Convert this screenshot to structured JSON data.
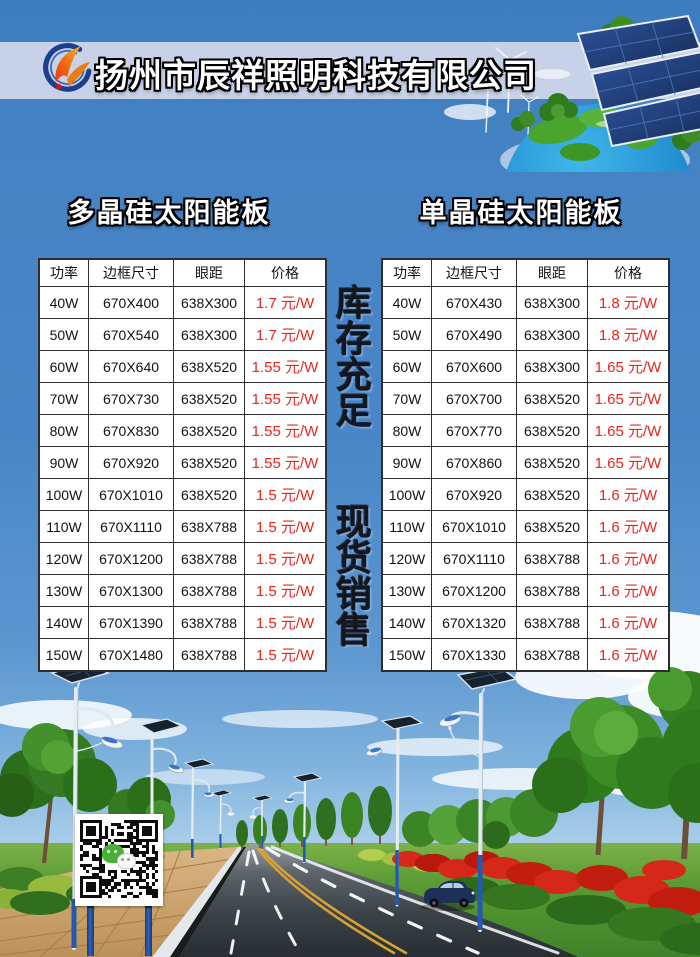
{
  "header": {
    "company_name": "扬州市辰祥照明科技有限公司"
  },
  "promo": {
    "line1": "库存充足",
    "line2": "现货销售"
  },
  "tables": [
    {
      "title": "多晶硅太阳能板",
      "columns": [
        "功率",
        "边框尺寸",
        "眼距",
        "价格"
      ],
      "rows": [
        [
          "40W",
          "670X400",
          "638X300",
          "1.7 元/W"
        ],
        [
          "50W",
          "670X540",
          "638X300",
          "1.7 元/W"
        ],
        [
          "60W",
          "670X640",
          "638X520",
          "1.55 元/W"
        ],
        [
          "70W",
          "670X730",
          "638X520",
          "1.55 元/W"
        ],
        [
          "80W",
          "670X830",
          "638X520",
          "1.55 元/W"
        ],
        [
          "90W",
          "670X920",
          "638X520",
          "1.55 元/W"
        ],
        [
          "100W",
          "670X1010",
          "638X520",
          "1.5 元/W"
        ],
        [
          "110W",
          "670X1110",
          "638X788",
          "1.5 元/W"
        ],
        [
          "120W",
          "670X1200",
          "638X788",
          "1.5 元/W"
        ],
        [
          "130W",
          "670X1300",
          "638X788",
          "1.5 元/W"
        ],
        [
          "140W",
          "670X1390",
          "638X788",
          "1.5 元/W"
        ],
        [
          "150W",
          "670X1480",
          "638X788",
          "1.5 元/W"
        ]
      ]
    },
    {
      "title": "单晶硅太阳能板",
      "columns": [
        "功率",
        "边框尺寸",
        "眼距",
        "价格"
      ],
      "rows": [
        [
          "40W",
          "670X430",
          "638X300",
          "1.8 元/W"
        ],
        [
          "50W",
          "670X490",
          "638X300",
          "1.8 元/W"
        ],
        [
          "60W",
          "670X600",
          "638X300",
          "1.65 元/W"
        ],
        [
          "70W",
          "670X700",
          "638X520",
          "1.65 元/W"
        ],
        [
          "80W",
          "670X770",
          "638X520",
          "1.65 元/W"
        ],
        [
          "90W",
          "670X860",
          "638X520",
          "1.65 元/W"
        ],
        [
          "100W",
          "670X920",
          "638X520",
          "1.6 元/W"
        ],
        [
          "110W",
          "670X1010",
          "638X520",
          "1.6 元/W"
        ],
        [
          "120W",
          "670X1110",
          "638X788",
          "1.6 元/W"
        ],
        [
          "130W",
          "670X1200",
          "638X788",
          "1.6 元/W"
        ],
        [
          "140W",
          "670X1320",
          "638X788",
          "1.6 元/W"
        ],
        [
          "150W",
          "670X1330",
          "638X788",
          "1.6 元/W"
        ]
      ]
    }
  ],
  "colors": {
    "background_blue": "#4886c7",
    "band": "#c7d2e8",
    "price_red": "#e8261c",
    "table_border": "#2e2e2e",
    "pole_blue": "#2559ae",
    "grass_green": "#5a9b33"
  },
  "icons": {
    "logo": "chenxiang-swoosh-logo",
    "qr": "wechat-qr-code",
    "wechat": "wechat-bubbles-icon"
  }
}
